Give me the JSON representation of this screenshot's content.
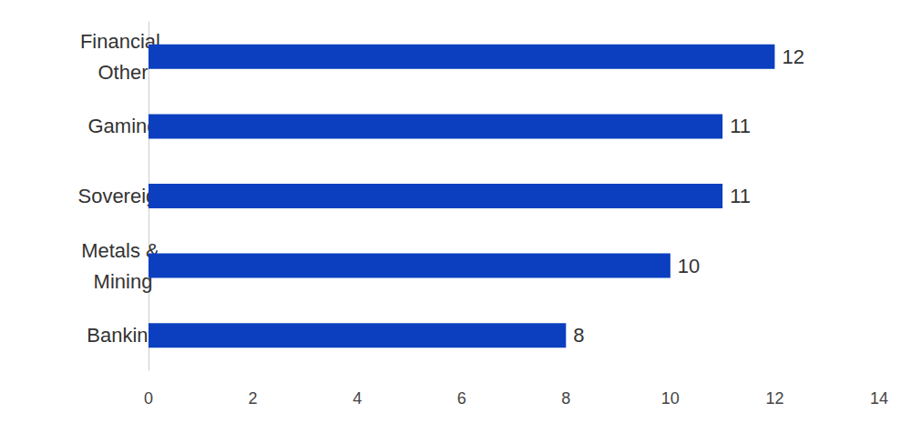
{
  "chart_data": {
    "type": "bar",
    "orientation": "horizontal",
    "categories": [
      "Financial Other",
      "Gaming",
      "Sovereign",
      "Metals & Mining",
      "Banking"
    ],
    "values": [
      12,
      11,
      11,
      10,
      8
    ],
    "color": "#0b3fbf",
    "xlim": [
      0,
      14
    ],
    "xticks": [
      0,
      2,
      4,
      6,
      8,
      10,
      12,
      14
    ],
    "grid": false,
    "data_labels": true
  }
}
